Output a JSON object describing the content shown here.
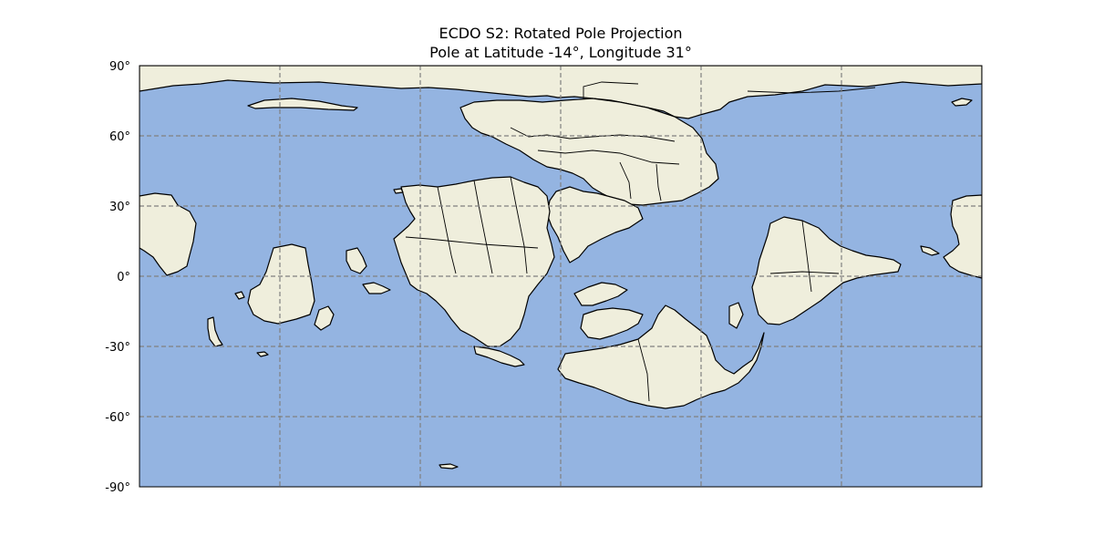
{
  "figure": {
    "title_line1": "ECDO S2: Rotated Pole Projection",
    "title_line2": "Pole at Latitude -14°, Longitude 31°"
  },
  "map": {
    "projection": "rotated pole (plate carrée frame)",
    "pole_latitude": -14,
    "pole_longitude": 31,
    "lat_range": [
      -90,
      90
    ],
    "lon_range": [
      -180,
      180
    ],
    "gridlines": {
      "style": "dashed",
      "lon_step_deg": 60,
      "lat_step_deg": 30
    },
    "colors": {
      "ocean": "#94b4e1",
      "land": "#efeedc",
      "coastline": "#000000",
      "gridline": "#808080"
    }
  },
  "axis": {
    "y_ticks": [
      "90°",
      "60°",
      "30°",
      "0°",
      "-30°",
      "-60°",
      "-90°"
    ]
  }
}
